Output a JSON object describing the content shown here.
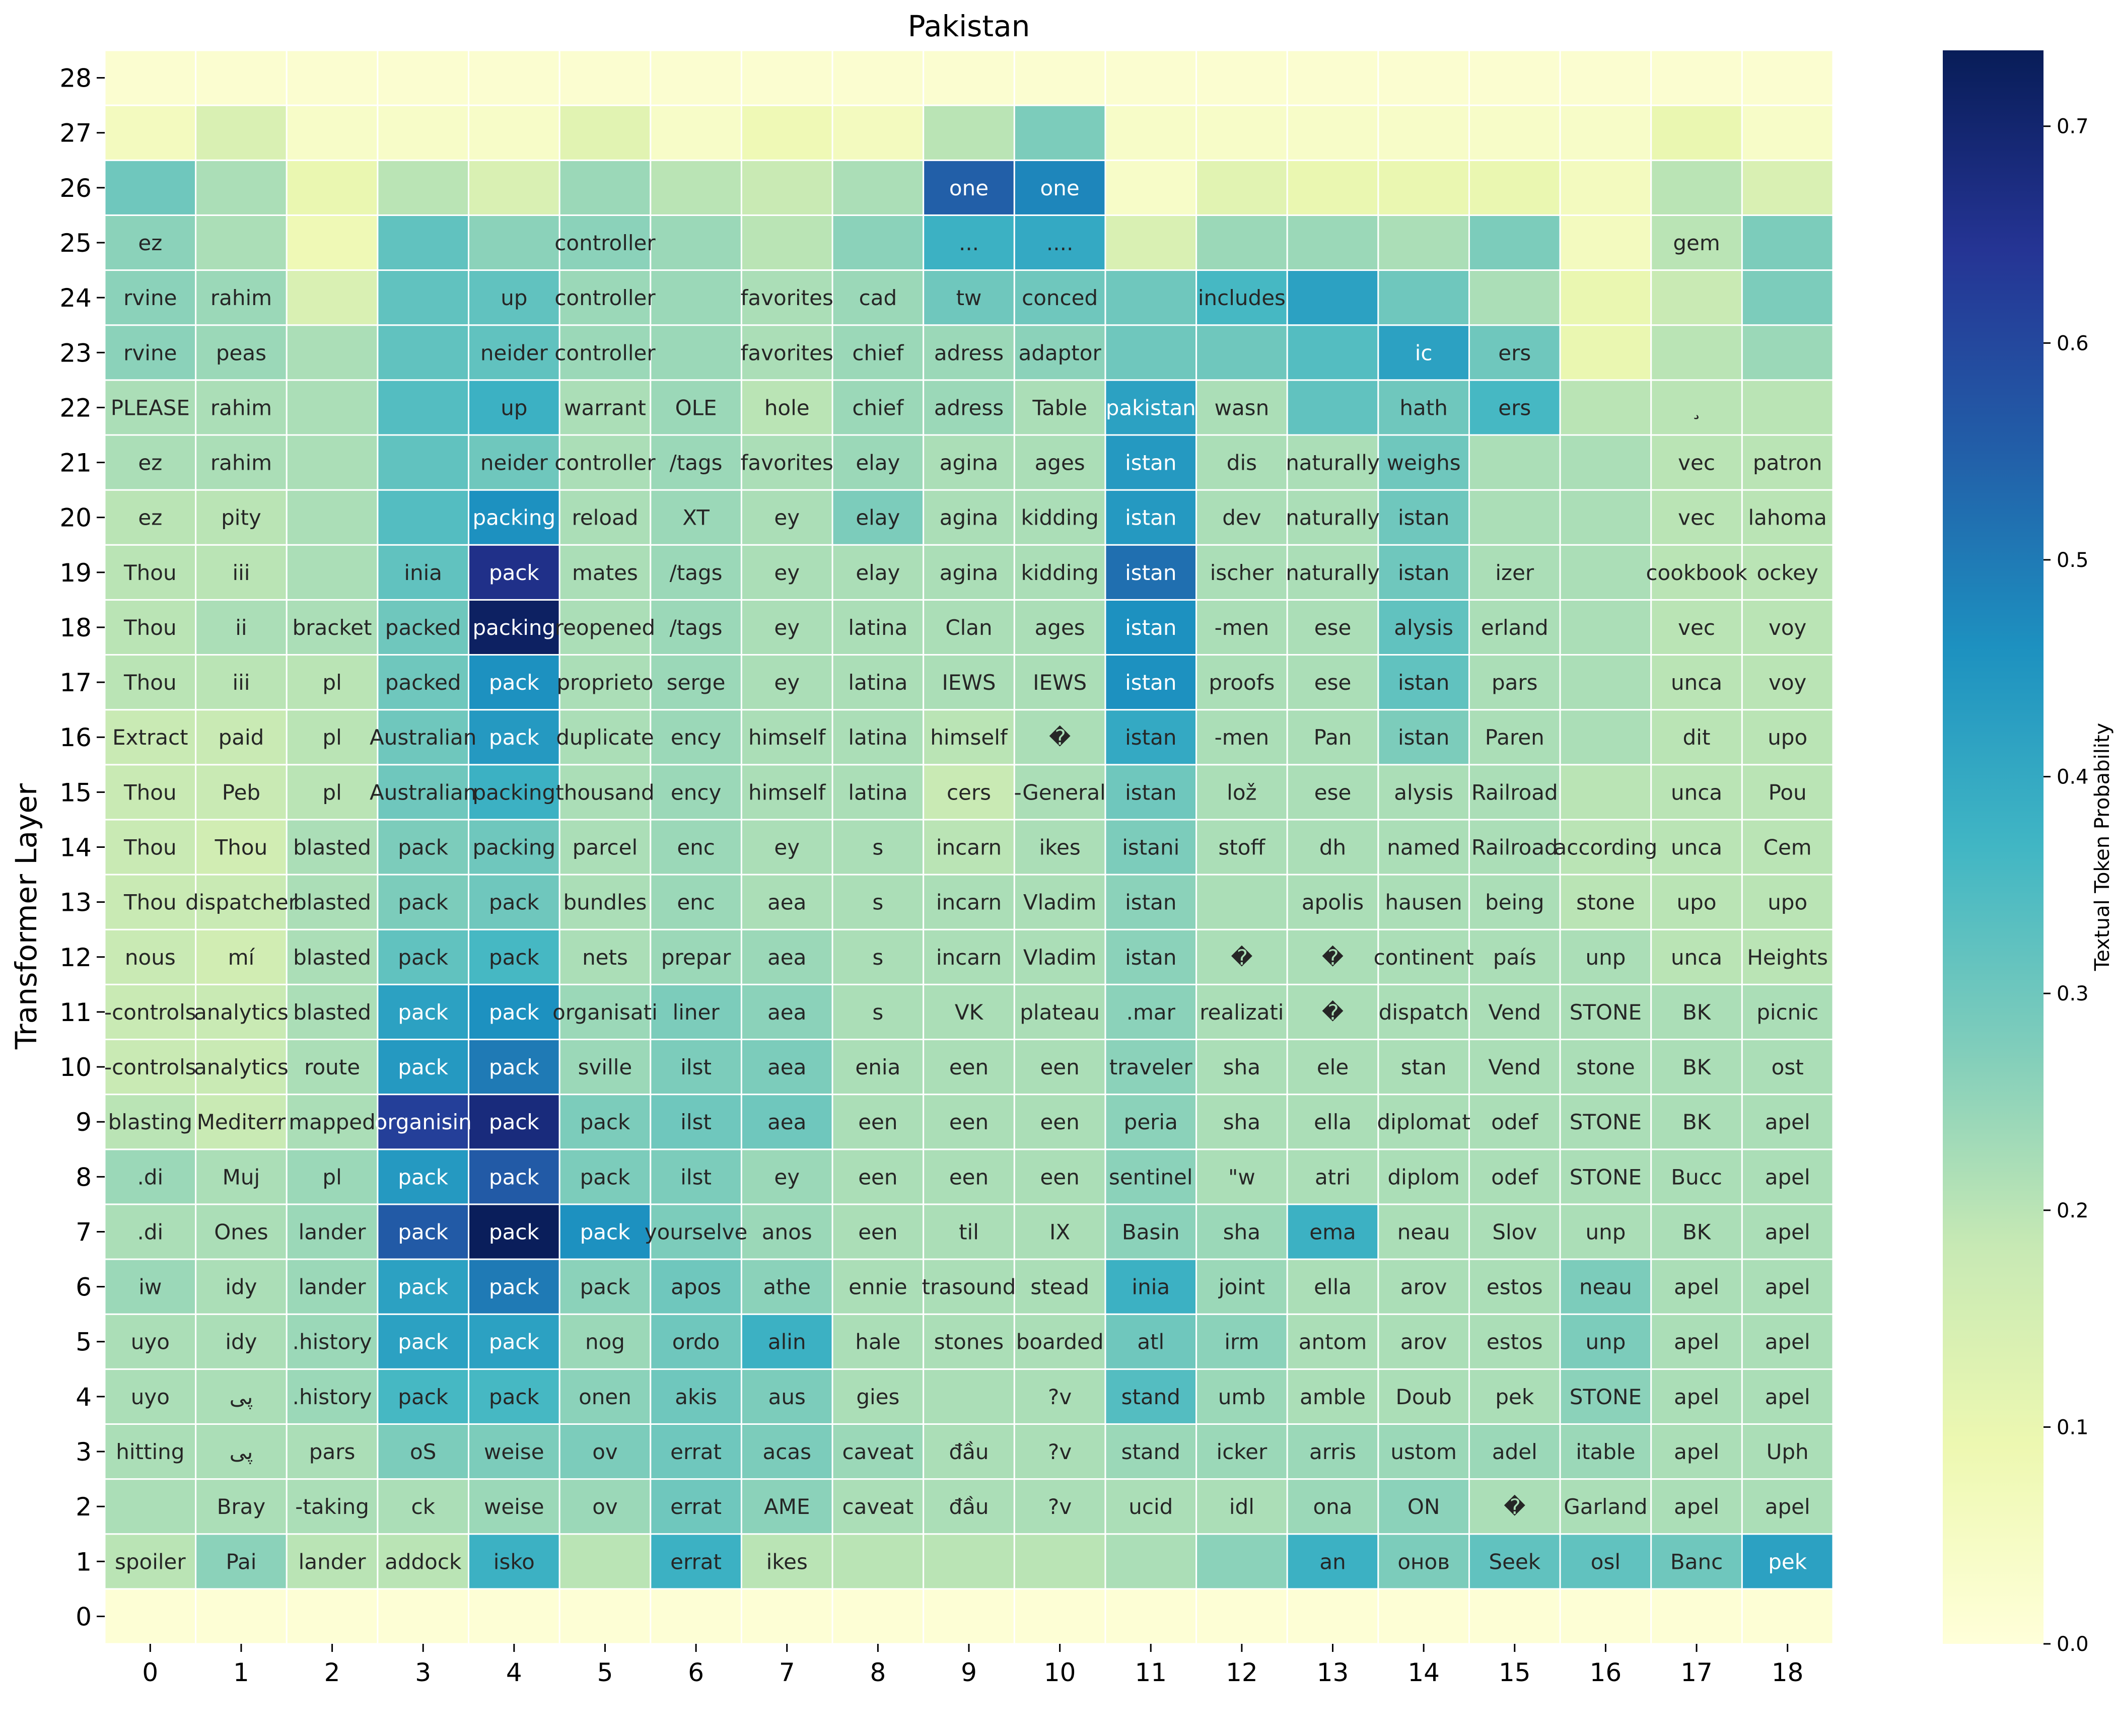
{
  "chart_data": {
    "type": "heatmap",
    "title": "Pakistan",
    "xlabel": "",
    "ylabel": "Transformer Layer",
    "colorbar_label": "Textual Token Probability",
    "colorbar_ticks": [
      "0.0",
      "0.1",
      "0.2",
      "0.3",
      "0.4",
      "0.5",
      "0.6",
      "0.7"
    ],
    "colorbar_range": [
      0,
      0.735
    ],
    "colormap": "YlGnBu",
    "x": [
      0,
      1,
      2,
      3,
      4,
      5,
      6,
      7,
      8,
      9,
      10,
      11,
      12,
      13,
      14,
      15,
      16,
      17,
      18
    ],
    "y": [
      0,
      1,
      2,
      3,
      4,
      5,
      6,
      7,
      8,
      9,
      10,
      11,
      12,
      13,
      14,
      15,
      16,
      17,
      18,
      19,
      20,
      21,
      22,
      23,
      24,
      25,
      26,
      27,
      28
    ],
    "values": [
      [
        0.01,
        0.01,
        0.01,
        0.01,
        0.01,
        0.01,
        0.01,
        0.01,
        0.01,
        0.01,
        0.01,
        0.01,
        0.01,
        0.01,
        0.01,
        0.01,
        0.01,
        0.01,
        0.01
      ],
      [
        0.2,
        0.26,
        0.2,
        0.2,
        0.38,
        0.2,
        0.38,
        0.2,
        0.2,
        0.2,
        0.2,
        0.22,
        0.26,
        0.38,
        0.28,
        0.32,
        0.32,
        0.3,
        0.42
      ],
      [
        0.22,
        0.22,
        0.22,
        0.22,
        0.24,
        0.24,
        0.3,
        0.26,
        0.22,
        0.22,
        0.22,
        0.22,
        0.22,
        0.24,
        0.26,
        0.22,
        0.22,
        0.22,
        0.22
      ],
      [
        0.22,
        0.22,
        0.22,
        0.28,
        0.28,
        0.28,
        0.3,
        0.28,
        0.24,
        0.22,
        0.22,
        0.24,
        0.24,
        0.24,
        0.24,
        0.24,
        0.24,
        0.22,
        0.22
      ],
      [
        0.22,
        0.22,
        0.24,
        0.36,
        0.36,
        0.26,
        0.3,
        0.28,
        0.22,
        0.22,
        0.22,
        0.34,
        0.24,
        0.22,
        0.22,
        0.22,
        0.26,
        0.22,
        0.22
      ],
      [
        0.22,
        0.22,
        0.24,
        0.42,
        0.42,
        0.24,
        0.3,
        0.38,
        0.22,
        0.22,
        0.22,
        0.3,
        0.26,
        0.22,
        0.22,
        0.22,
        0.28,
        0.22,
        0.22
      ],
      [
        0.24,
        0.22,
        0.24,
        0.42,
        0.5,
        0.26,
        0.3,
        0.26,
        0.22,
        0.22,
        0.22,
        0.38,
        0.24,
        0.22,
        0.22,
        0.22,
        0.28,
        0.22,
        0.22
      ],
      [
        0.22,
        0.22,
        0.24,
        0.56,
        0.73,
        0.46,
        0.28,
        0.24,
        0.22,
        0.22,
        0.22,
        0.26,
        0.24,
        0.38,
        0.22,
        0.22,
        0.22,
        0.22,
        0.22
      ],
      [
        0.24,
        0.22,
        0.24,
        0.44,
        0.56,
        0.28,
        0.28,
        0.24,
        0.22,
        0.22,
        0.22,
        0.26,
        0.22,
        0.22,
        0.22,
        0.22,
        0.22,
        0.22,
        0.22
      ],
      [
        0.2,
        0.18,
        0.22,
        0.62,
        0.68,
        0.28,
        0.3,
        0.3,
        0.22,
        0.22,
        0.22,
        0.26,
        0.22,
        0.22,
        0.22,
        0.22,
        0.22,
        0.22,
        0.22
      ],
      [
        0.18,
        0.18,
        0.22,
        0.44,
        0.5,
        0.24,
        0.28,
        0.28,
        0.22,
        0.22,
        0.22,
        0.26,
        0.22,
        0.22,
        0.22,
        0.22,
        0.22,
        0.22,
        0.22
      ],
      [
        0.18,
        0.18,
        0.22,
        0.42,
        0.46,
        0.24,
        0.28,
        0.26,
        0.22,
        0.22,
        0.22,
        0.26,
        0.22,
        0.22,
        0.22,
        0.22,
        0.22,
        0.22,
        0.22
      ],
      [
        0.18,
        0.16,
        0.22,
        0.32,
        0.36,
        0.22,
        0.24,
        0.24,
        0.22,
        0.22,
        0.22,
        0.26,
        0.22,
        0.22,
        0.22,
        0.22,
        0.22,
        0.2,
        0.2
      ],
      [
        0.18,
        0.18,
        0.22,
        0.28,
        0.3,
        0.22,
        0.24,
        0.22,
        0.22,
        0.22,
        0.22,
        0.26,
        0.22,
        0.22,
        0.22,
        0.22,
        0.2,
        0.2,
        0.2
      ],
      [
        0.18,
        0.16,
        0.22,
        0.28,
        0.3,
        0.22,
        0.24,
        0.22,
        0.22,
        0.2,
        0.22,
        0.28,
        0.22,
        0.22,
        0.22,
        0.22,
        0.2,
        0.2,
        0.2
      ],
      [
        0.18,
        0.18,
        0.2,
        0.3,
        0.38,
        0.22,
        0.24,
        0.22,
        0.22,
        0.18,
        0.22,
        0.3,
        0.22,
        0.22,
        0.22,
        0.22,
        0.2,
        0.2,
        0.2
      ],
      [
        0.18,
        0.18,
        0.2,
        0.3,
        0.44,
        0.22,
        0.24,
        0.22,
        0.22,
        0.2,
        0.22,
        0.4,
        0.22,
        0.22,
        0.28,
        0.22,
        0.22,
        0.2,
        0.2
      ],
      [
        0.2,
        0.2,
        0.2,
        0.3,
        0.46,
        0.22,
        0.24,
        0.22,
        0.22,
        0.22,
        0.22,
        0.46,
        0.22,
        0.22,
        0.32,
        0.22,
        0.22,
        0.2,
        0.2
      ],
      [
        0.2,
        0.22,
        0.22,
        0.3,
        0.72,
        0.22,
        0.24,
        0.22,
        0.22,
        0.22,
        0.22,
        0.46,
        0.22,
        0.22,
        0.32,
        0.22,
        0.22,
        0.2,
        0.2
      ],
      [
        0.2,
        0.2,
        0.22,
        0.32,
        0.66,
        0.22,
        0.24,
        0.22,
        0.22,
        0.22,
        0.22,
        0.52,
        0.22,
        0.22,
        0.3,
        0.22,
        0.22,
        0.2,
        0.2
      ],
      [
        0.2,
        0.2,
        0.22,
        0.34,
        0.46,
        0.22,
        0.24,
        0.22,
        0.28,
        0.22,
        0.22,
        0.44,
        0.22,
        0.22,
        0.3,
        0.22,
        0.22,
        0.2,
        0.2
      ],
      [
        0.22,
        0.22,
        0.22,
        0.32,
        0.3,
        0.22,
        0.24,
        0.22,
        0.24,
        0.22,
        0.22,
        0.44,
        0.22,
        0.22,
        0.3,
        0.22,
        0.22,
        0.2,
        0.2
      ],
      [
        0.22,
        0.22,
        0.22,
        0.34,
        0.38,
        0.22,
        0.24,
        0.2,
        0.24,
        0.24,
        0.22,
        0.42,
        0.22,
        0.32,
        0.3,
        0.36,
        0.2,
        0.2,
        0.2
      ],
      [
        0.26,
        0.24,
        0.22,
        0.32,
        0.32,
        0.24,
        0.24,
        0.22,
        0.24,
        0.24,
        0.26,
        0.3,
        0.3,
        0.34,
        0.42,
        0.3,
        0.1,
        0.2,
        0.24
      ],
      [
        0.26,
        0.24,
        0.14,
        0.32,
        0.32,
        0.24,
        0.24,
        0.22,
        0.24,
        0.3,
        0.3,
        0.3,
        0.36,
        0.42,
        0.3,
        0.22,
        0.1,
        0.18,
        0.28
      ],
      [
        0.26,
        0.22,
        0.08,
        0.32,
        0.26,
        0.26,
        0.24,
        0.2,
        0.26,
        0.38,
        0.4,
        0.14,
        0.24,
        0.24,
        0.22,
        0.28,
        0.06,
        0.2,
        0.28
      ],
      [
        0.3,
        0.22,
        0.1,
        0.2,
        0.14,
        0.24,
        0.2,
        0.18,
        0.22,
        0.55,
        0.48,
        0.04,
        0.12,
        0.1,
        0.1,
        0.1,
        0.06,
        0.2,
        0.14
      ],
      [
        0.06,
        0.14,
        0.04,
        0.04,
        0.04,
        0.12,
        0.04,
        0.08,
        0.06,
        0.2,
        0.28,
        0.04,
        0.04,
        0.04,
        0.04,
        0.04,
        0.04,
        0.1,
        0.04
      ],
      [
        0.02,
        0.02,
        0.02,
        0.02,
        0.02,
        0.02,
        0.02,
        0.02,
        0.02,
        0.02,
        0.02,
        0.02,
        0.02,
        0.02,
        0.02,
        0.02,
        0.02,
        0.02,
        0.02
      ]
    ],
    "cell_labels": [
      [
        "",
        "",
        "",
        "",
        "",
        "",
        "",
        "",
        "",
        "",
        "",
        "",
        "",
        "",
        "",
        "",
        "",
        "",
        ""
      ],
      [
        "spoiler",
        "Pai",
        "lander",
        "addock",
        "isko",
        "",
        "errat",
        "ikes",
        "",
        "",
        "",
        "",
        "",
        "an",
        "онов",
        "Seek",
        "osl",
        "Banc",
        "pek"
      ],
      [
        "",
        "Bray",
        "-taking",
        "ck",
        "weise",
        "ov",
        "errat",
        "AME",
        "caveat",
        "đầu",
        "?v",
        "ucid",
        "idl",
        "ona",
        "ON",
        "�",
        "Garland",
        "apel",
        "apel"
      ],
      [
        "hitting",
        "پی",
        "pars",
        "oS",
        "weise",
        "ov",
        "errat",
        "acas",
        "caveat",
        "đầu",
        "?v",
        "stand",
        "icker",
        "arris",
        "ustom",
        "adel",
        "itable",
        "apel",
        "Uph"
      ],
      [
        "uyo",
        "پی",
        ".history",
        "pack",
        "pack",
        "onen",
        "akis",
        "aus",
        "gies",
        "",
        "?v",
        "stand",
        "umb",
        "amble",
        "Doub",
        "pek",
        "STONE",
        "apel",
        "apel"
      ],
      [
        "uyo",
        "idy",
        ".history",
        "pack",
        "pack",
        "nog",
        "ordo",
        "alin",
        "hale",
        "stones",
        "boarded",
        "atl",
        "irm",
        "antom",
        "arov",
        "estos",
        "unp",
        "apel",
        "apel"
      ],
      [
        "iw",
        "idy",
        "lander",
        "pack",
        "pack",
        "pack",
        "apos",
        "athe",
        "ennie",
        "trasound",
        "stead",
        "inia",
        "joint",
        "ella",
        "arov",
        "estos",
        "neau",
        "apel",
        "apel"
      ],
      [
        ".di",
        "Ones",
        "lander",
        "pack",
        "pack",
        "pack",
        "yourselve",
        "anos",
        "een",
        "til",
        "IX",
        "Basin",
        "sha",
        "ema",
        "neau",
        "Slov",
        "unp",
        "BK",
        "apel"
      ],
      [
        ".di",
        "Muj",
        "pl",
        "pack",
        "pack",
        "pack",
        "ilst",
        "ey",
        "een",
        "een",
        "een",
        "sentinel",
        "\"w",
        "atri",
        "diplom",
        "odef",
        "STONE",
        "Bucc",
        "apel"
      ],
      [
        "blasting",
        "Mediterr",
        "mapped",
        "organisin",
        "pack",
        "pack",
        "ilst",
        "aea",
        "een",
        "een",
        "een",
        "peria",
        "sha",
        "ella",
        "diplomat",
        "odef",
        "STONE",
        "BK",
        "apel"
      ],
      [
        "-controls",
        "analytics",
        "route",
        "pack",
        "pack",
        "sville",
        "ilst",
        "aea",
        "enia",
        "een",
        "een",
        "traveler",
        "sha",
        "ele",
        "stan",
        "Vend",
        "stone",
        "BK",
        "ost"
      ],
      [
        "-controls",
        "analytics",
        "blasted",
        "pack",
        "pack",
        "organisati",
        "liner",
        "aea",
        "s",
        "VK",
        "plateau",
        ".mar",
        "realizati",
        "�",
        "dispatch",
        "Vend",
        "STONE",
        "BK",
        "picnic"
      ],
      [
        "nous",
        "mí",
        "blasted",
        "pack",
        "pack",
        "nets",
        "prepar",
        "aea",
        "s",
        "incarn",
        "Vladim",
        "istan",
        "�",
        "�",
        "continent",
        "país",
        "unp",
        "unca",
        "Heights"
      ],
      [
        "Thou",
        "dispatcher",
        "blasted",
        "pack",
        "pack",
        "bundles",
        "enc",
        "aea",
        "s",
        "incarn",
        "Vladim",
        "istan",
        "",
        "apolis",
        "hausen",
        "being",
        "stone",
        "upo",
        "upo"
      ],
      [
        "Thou",
        "Thou",
        "blasted",
        "pack",
        "packing",
        "parcel",
        "enc",
        "ey",
        "s",
        "incarn",
        "ikes",
        "istani",
        "stoff",
        "dh",
        "named",
        "Railroad",
        "according",
        "unca",
        "Cem"
      ],
      [
        "Thou",
        "Peb",
        "pl",
        "Australian",
        "packing",
        "thousand",
        "ency",
        "himself",
        "latina",
        "cers",
        "-General",
        "istan",
        "lož",
        "ese",
        "alysis",
        "Railroad",
        "",
        "unca",
        "Pou"
      ],
      [
        "Extract",
        "paid",
        "pl",
        "Australian",
        "pack",
        "duplicate",
        "ency",
        "himself",
        "latina",
        "himself",
        "�",
        "istan",
        "-men",
        "Pan",
        "istan",
        "Paren",
        "",
        "dit",
        "upo"
      ],
      [
        "Thou",
        "iii",
        "pl",
        "packed",
        "pack",
        "proprieto",
        "serge",
        "ey",
        "latina",
        "IEWS",
        "IEWS",
        "istan",
        "proofs",
        "ese",
        "istan",
        "pars",
        "",
        "unca",
        "voy"
      ],
      [
        "Thou",
        "ii",
        "bracket",
        "packed",
        "packing",
        "reopened",
        "/tags",
        "ey",
        "latina",
        "Clan",
        "ages",
        "istan",
        "-men",
        "ese",
        "alysis",
        "erland",
        "",
        "vec",
        "voy"
      ],
      [
        "Thou",
        "iii",
        "",
        "inia",
        "pack",
        "mates",
        "/tags",
        "ey",
        "elay",
        "agina",
        "kidding",
        "istan",
        "ischer",
        "naturally",
        "istan",
        "izer",
        "",
        "cookbook",
        "ockey"
      ],
      [
        "ez",
        "pity",
        "",
        "",
        "packing",
        "reload",
        "XT",
        "ey",
        "elay",
        "agina",
        "kidding",
        "istan",
        "dev",
        "naturally",
        "istan",
        "",
        "",
        "vec",
        "lahoma"
      ],
      [
        "ez",
        "rahim",
        "",
        "",
        "neider",
        "controller",
        "/tags",
        "favorites",
        "elay",
        "agina",
        "ages",
        "istan",
        "dis",
        "naturally",
        "weighs",
        "",
        "",
        "vec",
        "patron"
      ],
      [
        "PLEASE",
        "rahim",
        "",
        "",
        "up",
        "warrant",
        "OLE",
        "hole",
        "chief",
        "adress",
        "Table",
        "pakistan",
        "wasn",
        "",
        "hath",
        "ers",
        "",
        "¸",
        ""
      ],
      [
        "rvine",
        "peas",
        "",
        "",
        "neider",
        "controller",
        "",
        "favorites",
        "chief",
        "adress",
        "adaptor",
        "",
        "",
        "",
        "ic",
        "ers",
        "",
        "",
        ""
      ],
      [
        "rvine",
        "rahim",
        "",
        "",
        "up",
        "controller",
        "",
        "favorites",
        "cad",
        "tw",
        "conced",
        "",
        "includes",
        "",
        "",
        "",
        "",
        "",
        ""
      ],
      [
        "ez",
        "",
        "",
        "",
        "",
        "controller",
        "",
        "",
        "",
        "...",
        "....",
        "",
        "",
        "",
        "",
        "",
        "",
        "gem",
        ""
      ],
      [
        "",
        "",
        "",
        "",
        "",
        "",
        "",
        "",
        "",
        "one",
        "one",
        "",
        "",
        "",
        "",
        "",
        "",
        "",
        ""
      ],
      [
        "",
        "",
        "",
        "",
        "",
        "",
        "",
        "",
        "",
        "",
        "",
        "",
        "",
        "",
        "",
        "",
        "",
        "",
        ""
      ],
      [
        "",
        "",
        "",
        "",
        "",
        "",
        "",
        "",
        "",
        "",
        "",
        "",
        "",
        "",
        "",
        "",
        "",
        "",
        ""
      ]
    ],
    "grid": false
  }
}
